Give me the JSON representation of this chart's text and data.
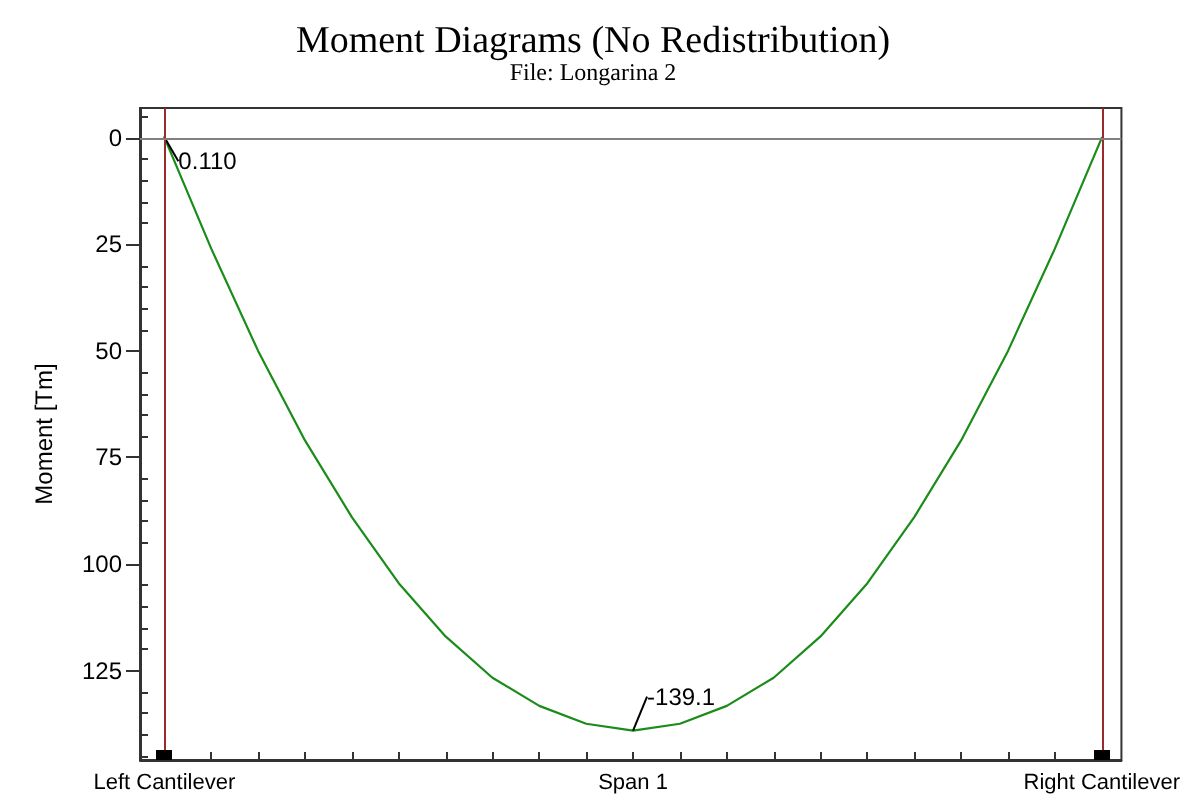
{
  "chart_data": {
    "type": "line",
    "title": "Moment Diagrams (No Redistribution)",
    "subtitle": "File: Longarina 2",
    "ylabel": "Moment [Tm]",
    "categories": [
      "Left Cantilever",
      null,
      null,
      null,
      null,
      null,
      null,
      null,
      null,
      null,
      "Span 1",
      null,
      null,
      null,
      null,
      null,
      null,
      null,
      null,
      null,
      "Right Cantilever"
    ],
    "values": [
      0.11,
      -26,
      -50,
      -71,
      -89,
      -104.5,
      -117,
      -126.7,
      -133.3,
      -137.5,
      -139.1,
      -137.5,
      -133.3,
      -126.7,
      -117,
      -104.5,
      -89,
      -71,
      -50,
      -26,
      0
    ],
    "value_labels": [
      "0.110",
      null,
      null,
      null,
      null,
      null,
      null,
      null,
      null,
      null,
      "-139.1",
      null,
      null,
      null,
      null,
      null,
      null,
      null,
      null,
      null,
      null
    ],
    "color": "#1a8c1a",
    "marker": "none",
    "line_style": "solid",
    "ylim": [
      -146,
      7
    ],
    "yticks": [
      {
        "value": -145,
        "label": null
      },
      {
        "value": -140,
        "label": null
      },
      {
        "value": -135,
        "label": null
      },
      {
        "value": -130,
        "label": null
      },
      {
        "value": -125,
        "label": "125"
      },
      {
        "value": -120,
        "label": null
      },
      {
        "value": -115,
        "label": null
      },
      {
        "value": -110,
        "label": null
      },
      {
        "value": -105,
        "label": null
      },
      {
        "value": -100,
        "label": "100"
      },
      {
        "value": -95,
        "label": null
      },
      {
        "value": -90,
        "label": null
      },
      {
        "value": -85,
        "label": null
      },
      {
        "value": -80,
        "label": null
      },
      {
        "value": -75,
        "label": "75"
      },
      {
        "value": -70,
        "label": null
      },
      {
        "value": -65,
        "label": null
      },
      {
        "value": -60,
        "label": null
      },
      {
        "value": -55,
        "label": null
      },
      {
        "value": -50,
        "label": "50"
      },
      {
        "value": -45,
        "label": null
      },
      {
        "value": -40,
        "label": null
      },
      {
        "value": -35,
        "label": null
      },
      {
        "value": -30,
        "label": null
      },
      {
        "value": -25,
        "label": "25"
      },
      {
        "value": -20,
        "label": null
      },
      {
        "value": -15,
        "label": null
      },
      {
        "value": -10,
        "label": null
      },
      {
        "value": -5,
        "label": null
      },
      0,
      {
        "value": 5,
        "label": null
      }
    ],
    "ref_lines": [
      {
        "axis": "x",
        "value": "Left Cantilever",
        "color": "#9b2a2a"
      },
      {
        "axis": "x",
        "value": "Right Cantilever",
        "color": "#9b2a2a"
      },
      {
        "axis": "y",
        "value": 0,
        "color": "#808080"
      }
    ]
  }
}
